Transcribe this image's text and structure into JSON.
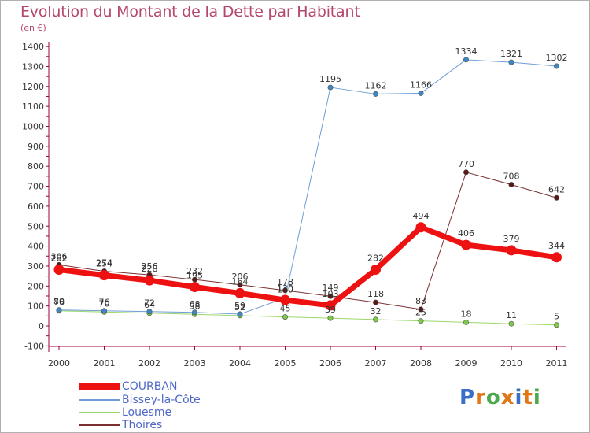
{
  "header": {
    "title": "Evolution du Montant de la Dette par Habitant",
    "subtitle": "(en €)"
  },
  "colors": {
    "title": "#b5476e",
    "axis": "#a0003c",
    "legend_text": "#5068c8",
    "tick_text": "#333333"
  },
  "logo": {
    "text": "Proxiti",
    "letter_colors": [
      "#3a6fc8",
      "#e07818",
      "#4ca84c",
      "#e07818",
      "#3a6fc8",
      "#e07818",
      "#4ca84c"
    ]
  },
  "chart_data": {
    "type": "line",
    "title": "Evolution du Montant de la Dette par Habitant",
    "ylabel": "(en €)",
    "x": [
      "2000",
      "2001",
      "2002",
      "2003",
      "2004",
      "2005",
      "2006",
      "2007",
      "2008",
      "2009",
      "2010",
      "2011"
    ],
    "yticks": [
      "-100",
      "0",
      "100",
      "200",
      "300",
      "400",
      "500",
      "600",
      "700",
      "800",
      "900",
      "1000",
      "1100",
      "1200",
      "1300",
      "1400"
    ],
    "ylim": [
      -100,
      1400
    ],
    "grid": false,
    "legend_position": "bottom-left",
    "series": [
      {
        "name": "COURBAN",
        "color": "#ee1111",
        "marker": "#ee1111",
        "width": 7,
        "values": [
          282,
          254,
          228,
          195,
          164,
          130,
          103,
          282,
          494,
          406,
          379,
          344
        ],
        "labels": [
          "282",
          "254",
          "228",
          "195",
          "164",
          "130",
          "103",
          "282",
          "494",
          "406",
          "379",
          "344"
        ]
      },
      {
        "name": "Bissey-la-Côte",
        "color": "#6f9ed6",
        "marker": "#3f86c4",
        "width": 1,
        "values": [
          80,
          76,
          72,
          68,
          59,
          140,
          1195,
          1162,
          1166,
          1334,
          1321,
          1302
        ],
        "labels": [
          "80",
          "76",
          "72",
          "68",
          "59",
          "140",
          "1195",
          "1162",
          "1166",
          "1334",
          "1321",
          "1302"
        ]
      },
      {
        "name": "Louesme",
        "color": "#9ad86a",
        "marker": "#7ec84a",
        "width": 1,
        "values": [
          76,
          70,
          64,
          58,
          52,
          45,
          39,
          32,
          25,
          18,
          11,
          5
        ],
        "labels": [
          "76",
          "70",
          "64",
          "58",
          "52",
          "45",
          "39",
          "32",
          "25",
          "18",
          "11",
          "5"
        ]
      },
      {
        "name": "Thoires",
        "color": "#7a3030",
        "marker": "#5a1818",
        "width": 1,
        "values": [
          306,
          274,
          256,
          232,
          206,
          178,
          149,
          118,
          83,
          770,
          708,
          642
        ],
        "labels": [
          "306",
          "274",
          "256",
          "232",
          "206",
          "178",
          "149",
          "118",
          "83",
          "770",
          "708",
          "642"
        ]
      }
    ]
  }
}
